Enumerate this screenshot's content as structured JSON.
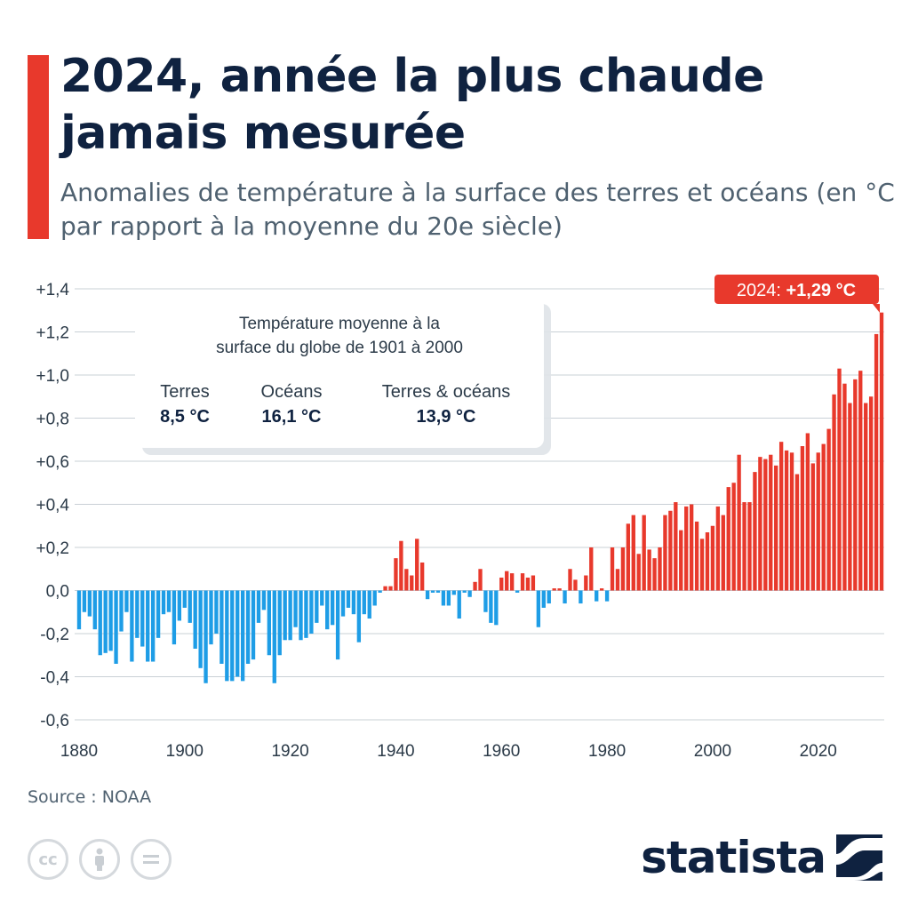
{
  "title": "2024, année la plus chaude jamais mesurée",
  "subtitle": "Anomalies de température à la surface des terres et océans (en °C par rapport à la moyenne du 20e siècle)",
  "source": "Source : NOAA",
  "brand": "statista",
  "colors": {
    "positive": "#e8392c",
    "negative": "#1e9de6",
    "title": "#0f2240",
    "accent": "#e8392c"
  },
  "icons": [
    "creative-commons-icon",
    "attribution-icon",
    "no-derivatives-icon"
  ],
  "info_box": {
    "title": "Température moyenne à la surface du globe de 1901 à 2000",
    "items": [
      {
        "label": "Terres",
        "value": "8,5 °C"
      },
      {
        "label": "Océans",
        "value": "16,1 °C"
      },
      {
        "label": "Terres & océans",
        "value": "13,9 °C"
      }
    ]
  },
  "callout": {
    "prefix": "2024: ",
    "value": "+1,29 °C"
  },
  "chart_data": {
    "type": "bar",
    "ylim": [
      -0.6,
      1.4
    ],
    "y_ticks": [
      1.4,
      1.2,
      1.0,
      0.8,
      0.6,
      0.4,
      0.2,
      0.0,
      -0.2,
      -0.4,
      -0.6
    ],
    "y_tick_labels": [
      "+1,4",
      "+1,2",
      "+1,0",
      "+0,8",
      "+0,6",
      "+0,4",
      "+0,2",
      "0,0",
      "-0,2",
      "-0,4",
      "-0,6"
    ],
    "x_ticks": [
      1880,
      1900,
      1920,
      1940,
      1960,
      1980,
      2000,
      2020
    ],
    "x_start": 1880,
    "grid": true,
    "values": [
      -0.18,
      -0.1,
      -0.12,
      -0.18,
      -0.3,
      -0.29,
      -0.28,
      -0.34,
      -0.19,
      -0.1,
      -0.33,
      -0.22,
      -0.26,
      -0.33,
      -0.33,
      -0.22,
      -0.11,
      -0.1,
      -0.25,
      -0.14,
      -0.08,
      -0.15,
      -0.27,
      -0.36,
      -0.43,
      -0.25,
      -0.2,
      -0.34,
      -0.42,
      -0.42,
      -0.4,
      -0.42,
      -0.34,
      -0.32,
      -0.15,
      -0.09,
      -0.3,
      -0.43,
      -0.3,
      -0.23,
      -0.23,
      -0.17,
      -0.23,
      -0.22,
      -0.2,
      -0.15,
      -0.07,
      -0.18,
      -0.16,
      -0.32,
      -0.12,
      -0.08,
      -0.11,
      -0.24,
      -0.11,
      -0.13,
      -0.07,
      -0.01,
      0.02,
      0.02,
      0.15,
      0.23,
      0.1,
      0.07,
      0.24,
      0.13,
      -0.04,
      -0.01,
      -0.01,
      -0.07,
      -0.07,
      -0.02,
      -0.13,
      -0.01,
      -0.03,
      0.04,
      0.1,
      -0.1,
      -0.15,
      -0.16,
      0.06,
      0.09,
      0.08,
      -0.01,
      0.08,
      0.06,
      0.07,
      -0.17,
      -0.08,
      -0.06,
      0.01,
      0.01,
      -0.06,
      0.1,
      0.05,
      -0.06,
      0.07,
      0.2,
      -0.05,
      0.01,
      -0.05,
      0.2,
      0.1,
      0.2,
      0.31,
      0.35,
      0.17,
      0.35,
      0.19,
      0.15,
      0.2,
      0.35,
      0.37,
      0.41,
      0.28,
      0.39,
      0.4,
      0.32,
      0.24,
      0.27,
      0.3,
      0.39,
      0.35,
      0.48,
      0.5,
      0.63,
      0.41,
      0.41,
      0.55,
      0.62,
      0.61,
      0.63,
      0.58,
      0.69,
      0.65,
      0.64,
      0.54,
      0.67,
      0.73,
      0.59,
      0.64,
      0.68,
      0.75,
      0.91,
      1.03,
      0.96,
      0.87,
      0.98,
      1.02,
      0.87,
      0.9,
      1.19,
      1.29
    ]
  }
}
